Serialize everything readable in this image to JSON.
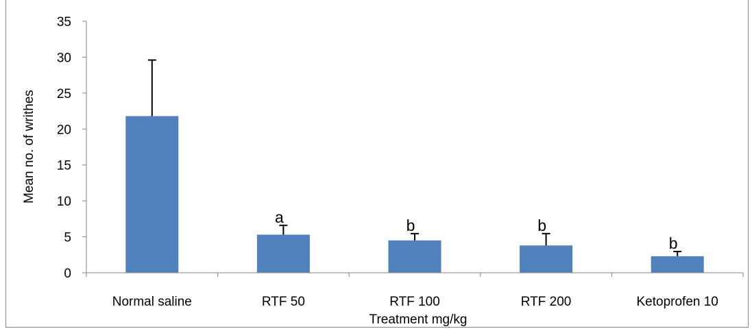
{
  "chart_data": {
    "type": "bar",
    "title": "",
    "xlabel": "Treatment mg/kg",
    "ylabel": "Mean no. of writhes",
    "ylim": [
      0,
      35
    ],
    "yticks": [
      "0",
      "5",
      "10",
      "15",
      "20",
      "25",
      "30",
      "35"
    ],
    "grid": false,
    "legend": "none",
    "bar_color": "#4f81bd",
    "categories": [
      "Normal saline",
      "RTF 50",
      "RTF 100",
      "RTF 200",
      "Ketoprofen 10"
    ],
    "values": [
      21.8,
      5.3,
      4.5,
      3.8,
      2.3
    ],
    "errors": [
      7.8,
      1.3,
      0.95,
      1.65,
      0.65
    ],
    "significance": [
      "",
      "a",
      "b",
      "b",
      "b"
    ]
  }
}
